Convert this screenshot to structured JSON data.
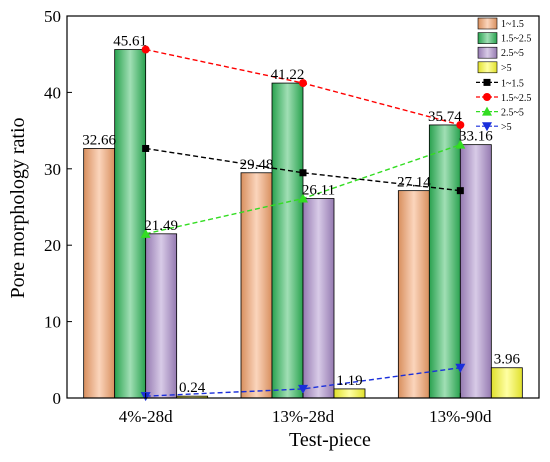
{
  "chart_data": {
    "type": "bar",
    "xlabel": "Test-piece",
    "ylabel": "Pore morphology ratio",
    "ylim": [
      0,
      50
    ],
    "yticks": [
      0,
      10,
      20,
      30,
      40,
      50
    ],
    "categories": [
      "4%-28d",
      "13%-28d",
      "13%-90d"
    ],
    "grid": false,
    "legend_position": "top-right",
    "series": [
      {
        "name": "1~1.5",
        "values": [
          32.66,
          29.48,
          27.14
        ],
        "labels": [
          "32.66",
          "29.48",
          "27.14"
        ],
        "color": "#f5a26b",
        "line_color": "#000000",
        "marker": "square"
      },
      {
        "name": "1.5~2.5",
        "values": [
          45.61,
          41.22,
          35.74
        ],
        "labels": [
          "45.61",
          "41.22",
          "35.74"
        ],
        "color": "#2fb85a",
        "line_color": "#ff0000",
        "marker": "circle"
      },
      {
        "name": "2.5~5",
        "values": [
          21.49,
          26.11,
          33.16
        ],
        "labels": [
          "21.49",
          "26.11",
          "33.16"
        ],
        "color": "#a98bc9",
        "line_color": "#33dd22",
        "marker": "triangle-up"
      },
      {
        "name": ">5",
        "values": [
          0.24,
          1.19,
          3.96
        ],
        "labels": [
          "0.24",
          "1.19",
          "3.96"
        ],
        "color": "#ffff33",
        "line_color": "#1a2fdb",
        "marker": "triangle-down"
      }
    ]
  }
}
